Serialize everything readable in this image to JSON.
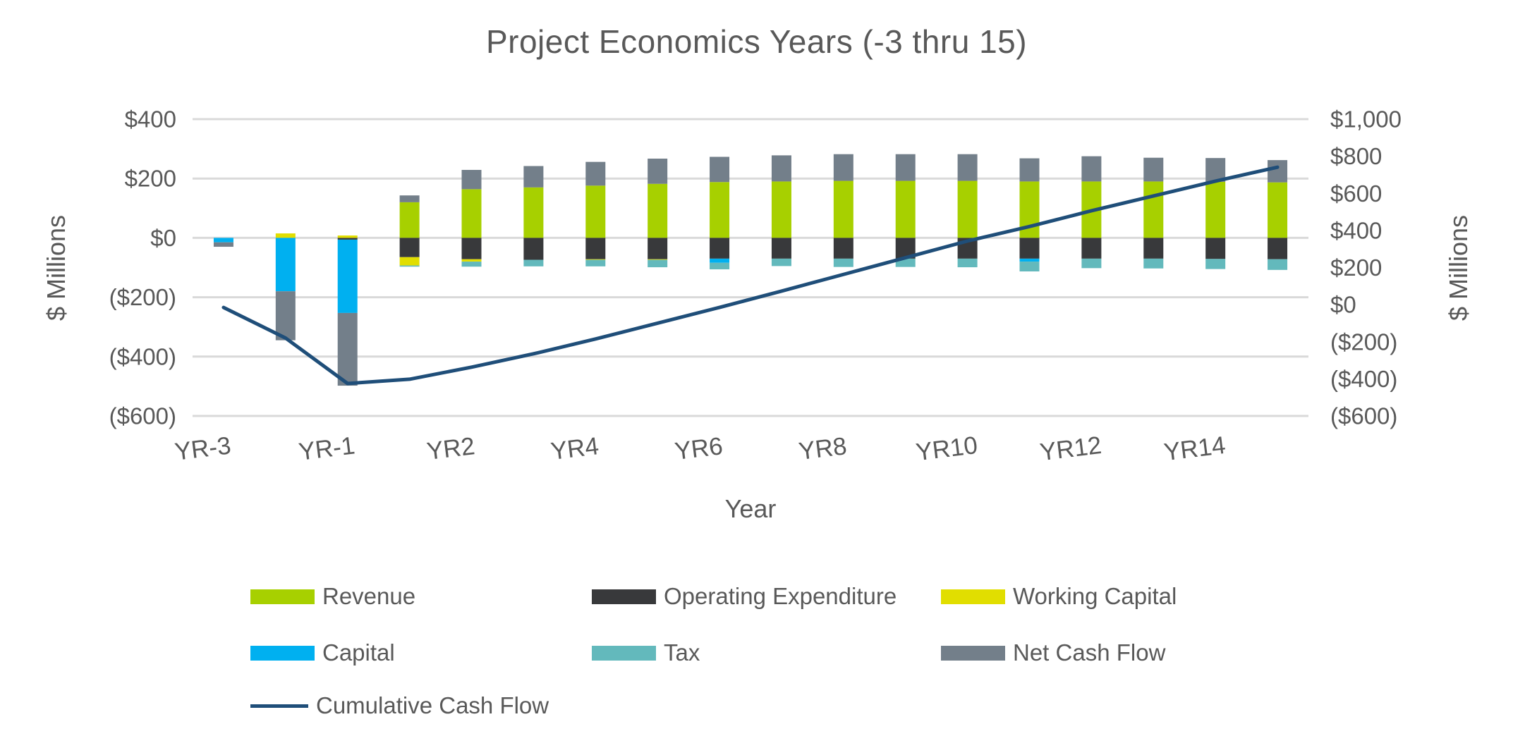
{
  "chart_data": {
    "type": "combo-stacked-bar-line",
    "title": "Project Economics Years (-3 thru 15)",
    "x_axis": {
      "title": "Year",
      "categories": [
        "YR-3",
        "YR-2",
        "YR-1",
        "YR1",
        "YR2",
        "YR3",
        "YR4",
        "YR5",
        "YR6",
        "YR7",
        "YR8",
        "YR9",
        "YR10",
        "YR11",
        "YR12",
        "YR13",
        "YR14",
        "YR15"
      ],
      "shown_tick_labels": [
        "YR-3",
        "YR-1",
        "YR2",
        "YR4",
        "YR6",
        "YR8",
        "YR10",
        "YR12",
        "YR14"
      ],
      "tick_label_every": 2
    },
    "left_axis": {
      "title": "$ Millions",
      "min": -600,
      "max": 400,
      "step": 200,
      "tick_labels": [
        "$400",
        "$200",
        "$0",
        "($200)",
        "($400)",
        "($600)"
      ]
    },
    "right_axis": {
      "title": "$ Millions",
      "min": -600,
      "max": 1000,
      "step": 200,
      "tick_labels": [
        "$1,000",
        "$800",
        "$600",
        "$400",
        "$200",
        "$0",
        "($200)",
        "($400)",
        "($600)"
      ]
    },
    "grid": true,
    "legend_position": "bottom",
    "units": "$ Millions",
    "series": [
      {
        "name": "Revenue",
        "type": "bar",
        "color": "#a7d000",
        "values": [
          0,
          0,
          0,
          120,
          164,
          170,
          176,
          182,
          188,
          190,
          192,
          192,
          192,
          190,
          190,
          190,
          189,
          187
        ]
      },
      {
        "name": "Operating Expenditure",
        "type": "bar",
        "color": "#38393b",
        "values": [
          0,
          0,
          -6,
          -65,
          -72,
          -74,
          -72,
          -72,
          -70,
          -70,
          -70,
          -70,
          -70,
          -70,
          -70,
          -70,
          -71,
          -72
        ]
      },
      {
        "name": "Working Capital",
        "type": "bar",
        "color": "#e1de00",
        "values": [
          0,
          15,
          8,
          -28,
          -8,
          0,
          -2,
          -2,
          0,
          0,
          0,
          0,
          0,
          0,
          0,
          0,
          0,
          0
        ]
      },
      {
        "name": "Capital",
        "type": "bar",
        "color": "#00b0f0",
        "values": [
          -15,
          -180,
          -247,
          0,
          0,
          0,
          0,
          0,
          -14,
          0,
          0,
          0,
          0,
          -10,
          0,
          0,
          0,
          0
        ]
      },
      {
        "name": "Tax",
        "type": "bar",
        "color": "#63b9bc",
        "values": [
          0,
          0,
          0,
          -4,
          -17,
          -22,
          -22,
          -25,
          -22,
          -25,
          -28,
          -28,
          -29,
          -33,
          -32,
          -33,
          -34,
          -36
        ]
      },
      {
        "name": "Net Cash Flow",
        "type": "bar",
        "color": "#737f8a",
        "values": [
          -15,
          -165,
          -245,
          23,
          65,
          72,
          80,
          85,
          85,
          88,
          90,
          90,
          90,
          78,
          85,
          80,
          80,
          75
        ]
      },
      {
        "name": "Cumulative Cash Flow",
        "type": "line",
        "color": "#1f4e79",
        "axis": "right",
        "values": [
          -15,
          -180,
          -425,
          -402,
          -337,
          -265,
          -185,
          -100,
          -15,
          73,
          163,
          253,
          343,
          421,
          506,
          586,
          666,
          741
        ]
      }
    ],
    "colors": {
      "grid": "#d9d9d9",
      "text": "#595959",
      "background": "#ffffff"
    }
  }
}
